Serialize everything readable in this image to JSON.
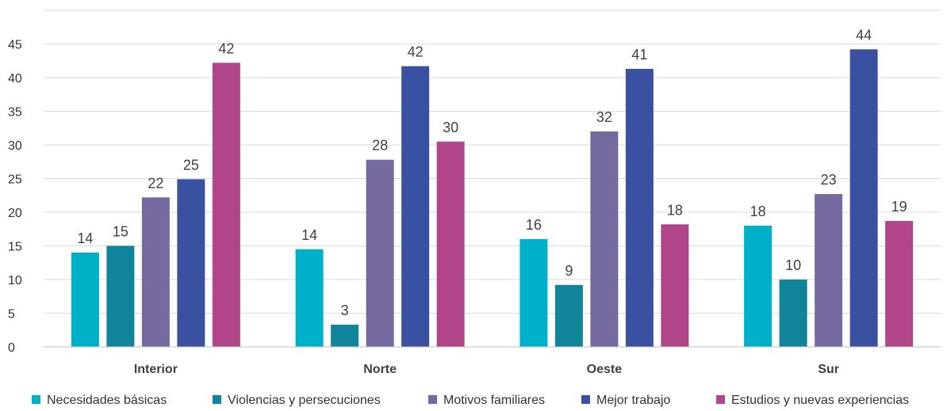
{
  "chart_data": {
    "type": "bar",
    "title": "",
    "xlabel": "",
    "ylabel": "",
    "categories": [
      "Interior",
      "Norte",
      "Oeste",
      "Sur"
    ],
    "ylim": [
      0,
      50
    ],
    "yticks": [
      0,
      5,
      10,
      15,
      20,
      25,
      30,
      35,
      40,
      45
    ],
    "grid": true,
    "legend_position": "bottom",
    "series": [
      {
        "name": "Necesidades básicas",
        "color": "#00B0C8",
        "values": [
          14,
          14.5,
          16,
          18
        ],
        "labels": [
          "14",
          "14",
          "16",
          "18"
        ]
      },
      {
        "name": "Violencias y persecuciones",
        "color": "#10849A",
        "values": [
          15,
          3.3,
          9.2,
          10
        ],
        "labels": [
          "15",
          "3",
          "9",
          "10"
        ]
      },
      {
        "name": "Motivos familiares",
        "color": "#7669A0",
        "values": [
          22.2,
          27.8,
          32,
          22.7
        ],
        "labels": [
          "22",
          "28",
          "32",
          "23"
        ]
      },
      {
        "name": "Mejor trabajo",
        "color": "#3A50A0",
        "values": [
          24.9,
          41.7,
          41.3,
          44.2
        ],
        "labels": [
          "25",
          "42",
          "41",
          "44"
        ]
      },
      {
        "name": "Estudios y nuevas experiencias",
        "color": "#B0458A",
        "values": [
          42.2,
          30.5,
          18.2,
          18.7
        ],
        "labels": [
          "42",
          "30",
          "18",
          "19"
        ]
      }
    ]
  }
}
